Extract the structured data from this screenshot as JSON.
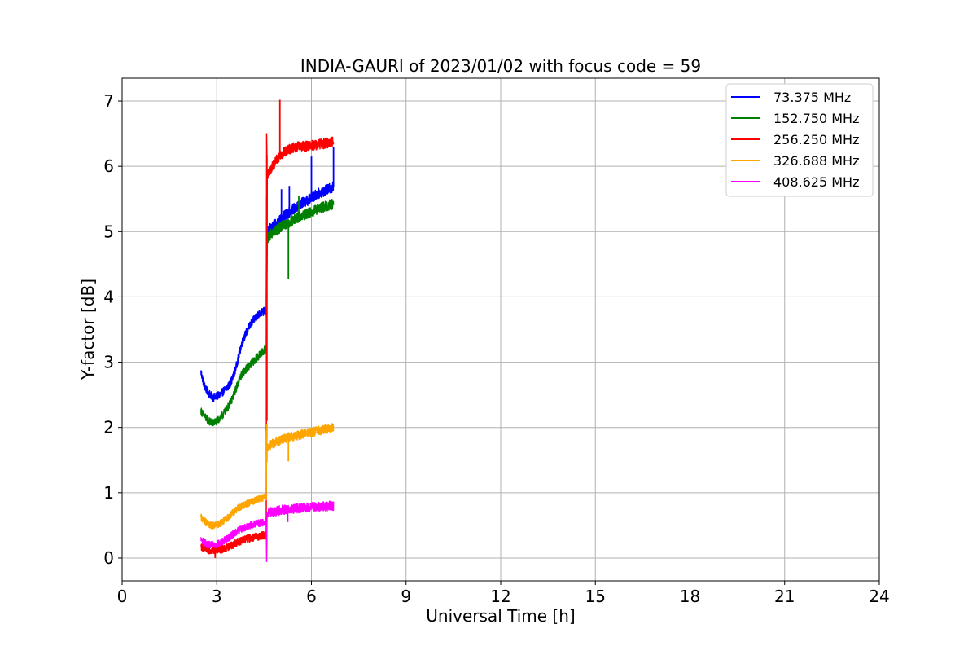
{
  "chart_data": {
    "type": "line",
    "title": "INDIA-GAURI of 2023/01/02 with focus code = 59",
    "xlabel": "Universal Time [h]",
    "ylabel": "Y-factor [dB]",
    "xlim": [
      0,
      24
    ],
    "ylim": [
      -0.35,
      7.35
    ],
    "xticks": [
      0,
      3,
      6,
      9,
      12,
      15,
      18,
      21,
      24
    ],
    "yticks": [
      0,
      1,
      2,
      3,
      4,
      5,
      6,
      7
    ],
    "grid": true,
    "legend_position": "top-right",
    "series": [
      {
        "name": "73.375 MHz",
        "legend_label": " 73.375 MHz",
        "color": "#0000ff",
        "points": [
          [
            2.5,
            2.85
          ],
          [
            2.6,
            2.65
          ],
          [
            2.7,
            2.55
          ],
          [
            2.8,
            2.5
          ],
          [
            2.9,
            2.45
          ],
          [
            3.0,
            2.48
          ],
          [
            3.1,
            2.5
          ],
          [
            3.2,
            2.55
          ],
          [
            3.3,
            2.6
          ],
          [
            3.4,
            2.65
          ],
          [
            3.5,
            2.75
          ],
          [
            3.6,
            2.9
          ],
          [
            3.7,
            3.1
          ],
          [
            3.8,
            3.3
          ],
          [
            3.9,
            3.42
          ],
          [
            4.0,
            3.52
          ],
          [
            4.1,
            3.6
          ],
          [
            4.2,
            3.67
          ],
          [
            4.3,
            3.72
          ],
          [
            4.4,
            3.76
          ],
          [
            4.5,
            3.78
          ],
          [
            4.57,
            3.78
          ],
          [
            4.58,
            5.5
          ],
          [
            4.6,
            5.0
          ],
          [
            4.7,
            5.05
          ],
          [
            4.8,
            5.1
          ],
          [
            4.9,
            5.12
          ],
          [
            5.0,
            5.18
          ],
          [
            5.1,
            5.22
          ],
          [
            5.2,
            5.26
          ],
          [
            5.3,
            5.3
          ],
          [
            5.4,
            5.34
          ],
          [
            5.5,
            5.36
          ],
          [
            5.6,
            5.4
          ],
          [
            5.7,
            5.44
          ],
          [
            5.8,
            5.46
          ],
          [
            5.9,
            5.48
          ],
          [
            6.0,
            5.52
          ],
          [
            6.1,
            5.55
          ],
          [
            6.2,
            5.58
          ],
          [
            6.3,
            5.6
          ],
          [
            6.4,
            5.62
          ],
          [
            6.5,
            5.64
          ],
          [
            6.6,
            5.66
          ],
          [
            6.7,
            5.68
          ]
        ],
        "spikes": [
          [
            5.05,
            5.65
          ],
          [
            5.3,
            5.7
          ],
          [
            6.0,
            6.15
          ],
          [
            6.7,
            6.3
          ]
        ]
      },
      {
        "name": "152.750 MHz",
        "legend_label": "152.750 MHz",
        "color": "#008000",
        "points": [
          [
            2.5,
            2.25
          ],
          [
            2.6,
            2.18
          ],
          [
            2.7,
            2.12
          ],
          [
            2.8,
            2.08
          ],
          [
            2.9,
            2.07
          ],
          [
            3.0,
            2.1
          ],
          [
            3.1,
            2.14
          ],
          [
            3.2,
            2.2
          ],
          [
            3.3,
            2.27
          ],
          [
            3.4,
            2.35
          ],
          [
            3.5,
            2.45
          ],
          [
            3.6,
            2.58
          ],
          [
            3.7,
            2.72
          ],
          [
            3.8,
            2.82
          ],
          [
            3.9,
            2.88
          ],
          [
            4.0,
            2.93
          ],
          [
            4.1,
            2.98
          ],
          [
            4.2,
            3.03
          ],
          [
            4.3,
            3.08
          ],
          [
            4.4,
            3.13
          ],
          [
            4.5,
            3.18
          ],
          [
            4.57,
            3.22
          ],
          [
            4.58,
            4.95
          ],
          [
            4.6,
            4.9
          ],
          [
            4.7,
            4.95
          ],
          [
            4.8,
            5.0
          ],
          [
            4.9,
            5.02
          ],
          [
            5.0,
            5.06
          ],
          [
            5.1,
            5.1
          ],
          [
            5.2,
            5.12
          ],
          [
            5.3,
            5.14
          ],
          [
            5.4,
            5.17
          ],
          [
            5.5,
            5.2
          ],
          [
            5.6,
            5.22
          ],
          [
            5.7,
            5.24
          ],
          [
            5.8,
            5.26
          ],
          [
            5.9,
            5.28
          ],
          [
            6.0,
            5.3
          ],
          [
            6.1,
            5.32
          ],
          [
            6.2,
            5.34
          ],
          [
            6.3,
            5.36
          ],
          [
            6.4,
            5.38
          ],
          [
            6.5,
            5.4
          ],
          [
            6.6,
            5.41
          ],
          [
            6.7,
            5.42
          ]
        ],
        "spikes": [
          [
            5.27,
            4.28
          ],
          [
            5.6,
            5.55
          ]
        ]
      },
      {
        "name": "256.250 MHz",
        "legend_label": "256.250 MHz",
        "color": "#ff0000",
        "points": [
          [
            2.5,
            0.17
          ],
          [
            2.6,
            0.15
          ],
          [
            2.7,
            0.13
          ],
          [
            2.8,
            0.12
          ],
          [
            2.9,
            0.12
          ],
          [
            3.0,
            0.12
          ],
          [
            3.1,
            0.13
          ],
          [
            3.2,
            0.14
          ],
          [
            3.3,
            0.16
          ],
          [
            3.4,
            0.18
          ],
          [
            3.5,
            0.2
          ],
          [
            3.6,
            0.23
          ],
          [
            3.7,
            0.25
          ],
          [
            3.8,
            0.27
          ],
          [
            3.9,
            0.29
          ],
          [
            4.0,
            0.3
          ],
          [
            4.1,
            0.31
          ],
          [
            4.2,
            0.32
          ],
          [
            4.3,
            0.33
          ],
          [
            4.4,
            0.34
          ],
          [
            4.5,
            0.35
          ],
          [
            4.57,
            0.35
          ],
          [
            4.58,
            6.5
          ],
          [
            4.6,
            5.85
          ],
          [
            4.7,
            5.95
          ],
          [
            4.8,
            6.02
          ],
          [
            4.9,
            6.1
          ],
          [
            5.0,
            6.15
          ],
          [
            5.1,
            6.2
          ],
          [
            5.2,
            6.23
          ],
          [
            5.3,
            6.26
          ],
          [
            5.4,
            6.28
          ],
          [
            5.5,
            6.29
          ],
          [
            5.6,
            6.3
          ],
          [
            5.7,
            6.3
          ],
          [
            5.8,
            6.31
          ],
          [
            5.9,
            6.31
          ],
          [
            6.0,
            6.32
          ],
          [
            6.1,
            6.32
          ],
          [
            6.2,
            6.33
          ],
          [
            6.3,
            6.34
          ],
          [
            6.4,
            6.35
          ],
          [
            6.5,
            6.36
          ],
          [
            6.6,
            6.37
          ],
          [
            6.7,
            6.38
          ]
        ],
        "spikes": [
          [
            5.0,
            7.02
          ],
          [
            4.59,
            2.1
          ],
          [
            2.95,
            0.0
          ]
        ]
      },
      {
        "name": "326.688 MHz",
        "legend_label": "326.688 MHz",
        "color": "#ffa500",
        "points": [
          [
            2.5,
            0.62
          ],
          [
            2.6,
            0.57
          ],
          [
            2.7,
            0.53
          ],
          [
            2.8,
            0.5
          ],
          [
            2.9,
            0.5
          ],
          [
            3.0,
            0.51
          ],
          [
            3.1,
            0.53
          ],
          [
            3.2,
            0.56
          ],
          [
            3.3,
            0.6
          ],
          [
            3.4,
            0.64
          ],
          [
            3.5,
            0.69
          ],
          [
            3.6,
            0.73
          ],
          [
            3.7,
            0.77
          ],
          [
            3.8,
            0.8
          ],
          [
            3.9,
            0.82
          ],
          [
            4.0,
            0.84
          ],
          [
            4.1,
            0.86
          ],
          [
            4.2,
            0.88
          ],
          [
            4.3,
            0.9
          ],
          [
            4.4,
            0.92
          ],
          [
            4.5,
            0.93
          ],
          [
            4.57,
            0.94
          ],
          [
            4.58,
            1.95
          ],
          [
            4.6,
            1.7
          ],
          [
            4.7,
            1.73
          ],
          [
            4.8,
            1.76
          ],
          [
            4.9,
            1.78
          ],
          [
            5.0,
            1.8
          ],
          [
            5.1,
            1.82
          ],
          [
            5.2,
            1.84
          ],
          [
            5.3,
            1.85
          ],
          [
            5.4,
            1.86
          ],
          [
            5.5,
            1.87
          ],
          [
            5.6,
            1.88
          ],
          [
            5.7,
            1.9
          ],
          [
            5.8,
            1.91
          ],
          [
            5.9,
            1.92
          ],
          [
            6.0,
            1.93
          ],
          [
            6.1,
            1.94
          ],
          [
            6.2,
            1.95
          ],
          [
            6.3,
            1.96
          ],
          [
            6.4,
            1.97
          ],
          [
            6.5,
            1.98
          ],
          [
            6.6,
            1.99
          ],
          [
            6.7,
            2.0
          ]
        ],
        "spikes": [
          [
            5.27,
            1.48
          ],
          [
            4.59,
            2.05
          ]
        ]
      },
      {
        "name": "408.625 MHz",
        "legend_label": "408.625 MHz",
        "color": "#ff00ff",
        "points": [
          [
            2.5,
            0.28
          ],
          [
            2.6,
            0.24
          ],
          [
            2.7,
            0.21
          ],
          [
            2.8,
            0.2
          ],
          [
            2.9,
            0.2
          ],
          [
            3.0,
            0.21
          ],
          [
            3.1,
            0.23
          ],
          [
            3.2,
            0.26
          ],
          [
            3.3,
            0.29
          ],
          [
            3.4,
            0.32
          ],
          [
            3.5,
            0.36
          ],
          [
            3.6,
            0.4
          ],
          [
            3.7,
            0.43
          ],
          [
            3.8,
            0.45
          ],
          [
            3.9,
            0.47
          ],
          [
            4.0,
            0.49
          ],
          [
            4.1,
            0.51
          ],
          [
            4.2,
            0.52
          ],
          [
            4.3,
            0.53
          ],
          [
            4.4,
            0.54
          ],
          [
            4.5,
            0.55
          ],
          [
            4.57,
            0.56
          ],
          [
            4.58,
            0.0
          ],
          [
            4.6,
            0.68
          ],
          [
            4.7,
            0.7
          ],
          [
            4.8,
            0.71
          ],
          [
            4.9,
            0.72
          ],
          [
            5.0,
            0.73
          ],
          [
            5.1,
            0.74
          ],
          [
            5.2,
            0.74
          ],
          [
            5.3,
            0.75
          ],
          [
            5.4,
            0.75
          ],
          [
            5.5,
            0.76
          ],
          [
            5.6,
            0.76
          ],
          [
            5.7,
            0.77
          ],
          [
            5.8,
            0.77
          ],
          [
            5.9,
            0.77
          ],
          [
            6.0,
            0.78
          ],
          [
            6.1,
            0.78
          ],
          [
            6.2,
            0.78
          ],
          [
            6.3,
            0.79
          ],
          [
            6.4,
            0.79
          ],
          [
            6.5,
            0.79
          ],
          [
            6.6,
            0.8
          ],
          [
            6.7,
            0.8
          ]
        ],
        "spikes": [
          [
            5.25,
            0.55
          ]
        ]
      }
    ]
  }
}
